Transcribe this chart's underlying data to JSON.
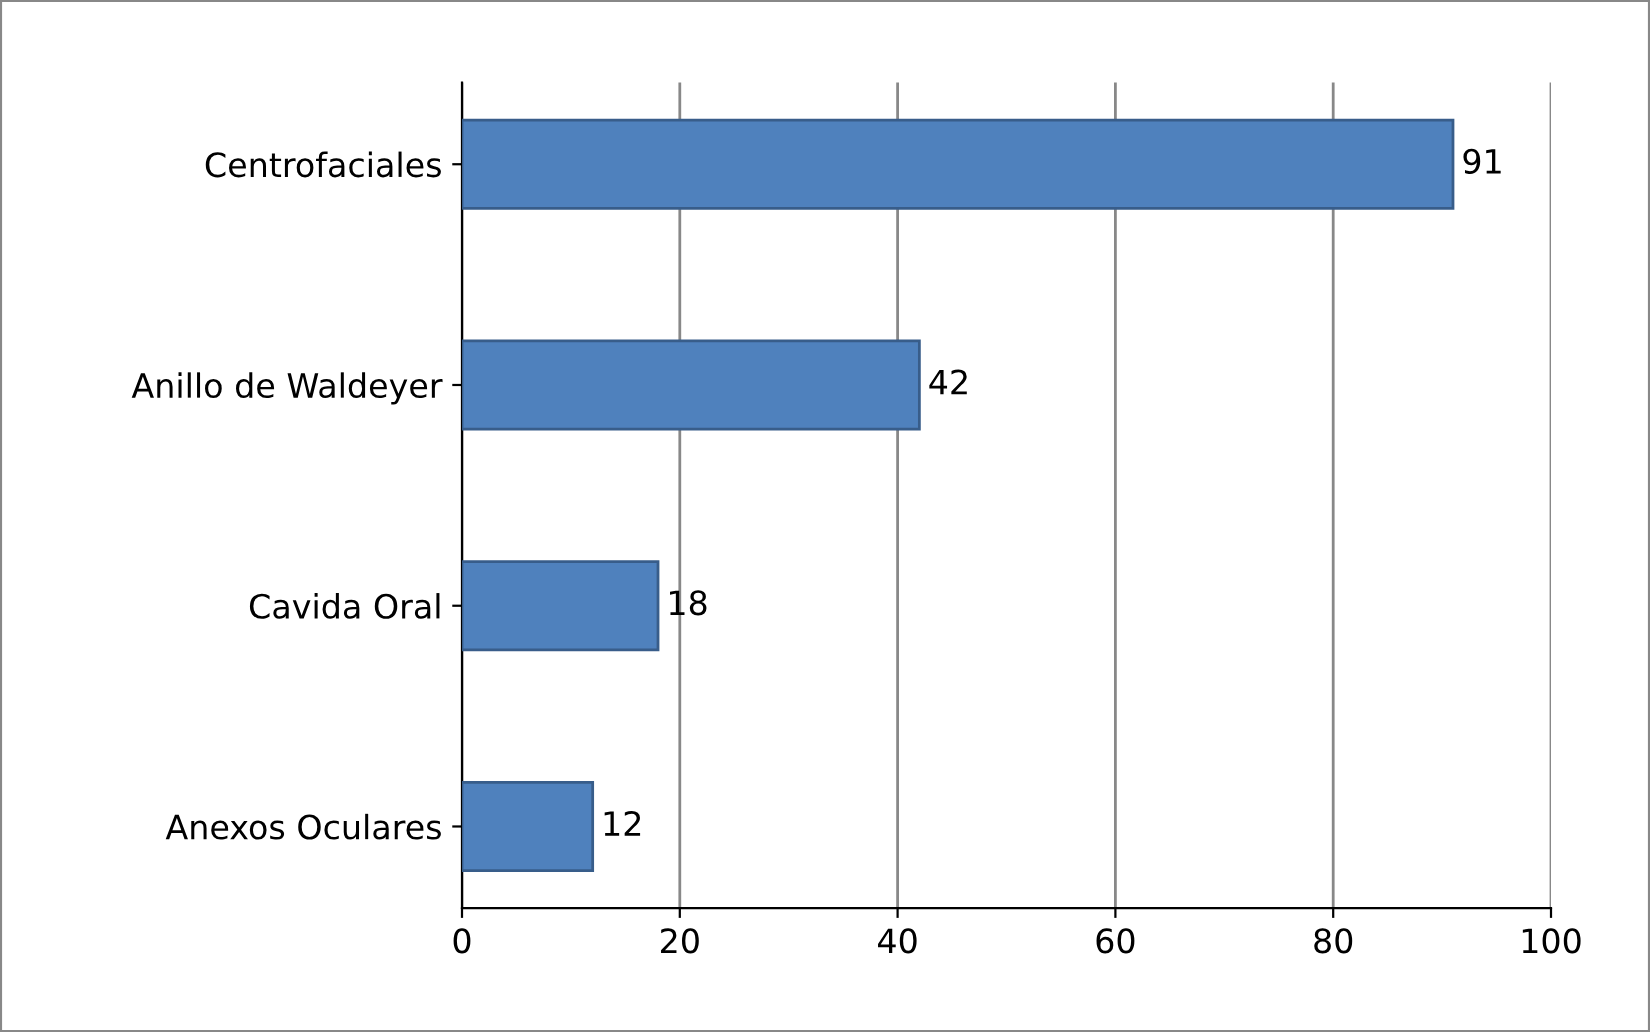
{
  "chart_data": {
    "type": "bar",
    "orientation": "horizontal",
    "categories": [
      "Centrofaciales",
      "Anillo de Waldeyer",
      "Cavida Oral",
      "Anexos Oculares"
    ],
    "values": [
      91,
      42,
      18,
      12
    ],
    "color": "#4f81bd",
    "xlim": [
      0,
      100
    ],
    "xticks": [
      0,
      20,
      40,
      60,
      80,
      100
    ],
    "grid": "x",
    "data_labels": true,
    "legend": false
  }
}
